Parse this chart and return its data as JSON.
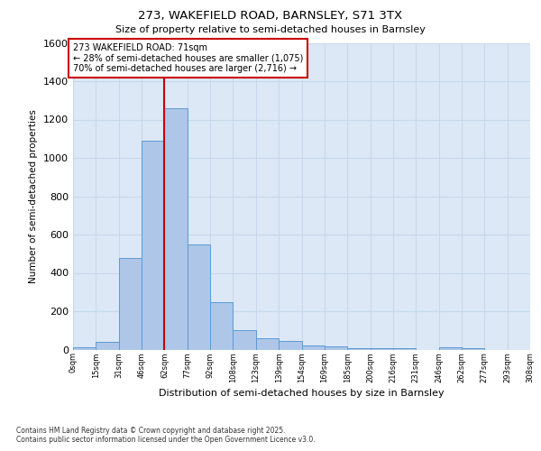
{
  "title_line1": "273, WAKEFIELD ROAD, BARNSLEY, S71 3TX",
  "title_line2": "Size of property relative to semi-detached houses in Barnsley",
  "xlabel": "Distribution of semi-detached houses by size in Barnsley",
  "ylabel": "Number of semi-detached properties",
  "bar_values": [
    10,
    40,
    480,
    1090,
    1260,
    550,
    245,
    100,
    60,
    45,
    22,
    15,
    8,
    8,
    5,
    0,
    10,
    5,
    0,
    0
  ],
  "bin_labels": [
    "0sqm",
    "15sqm",
    "31sqm",
    "46sqm",
    "62sqm",
    "77sqm",
    "92sqm",
    "108sqm",
    "123sqm",
    "139sqm",
    "154sqm",
    "169sqm",
    "185sqm",
    "200sqm",
    "216sqm",
    "231sqm",
    "246sqm",
    "262sqm",
    "277sqm",
    "293sqm",
    "308sqm"
  ],
  "bar_color": "#aec6e8",
  "bar_edge_color": "#5b9bd5",
  "vline_x": 4,
  "vline_color": "#cc0000",
  "annotation_text": "273 WAKEFIELD ROAD: 71sqm\n← 28% of semi-detached houses are smaller (1,075)\n70% of semi-detached houses are larger (2,716) →",
  "annotation_box_color": "white",
  "annotation_box_edge": "#cc0000",
  "ylim_max": 1600,
  "yticks": [
    0,
    200,
    400,
    600,
    800,
    1000,
    1200,
    1400,
    1600
  ],
  "grid_color": "#c8d8ec",
  "bg_color": "#dce8f5",
  "footnote": "Contains HM Land Registry data © Crown copyright and database right 2025.\nContains public sector information licensed under the Open Government Licence v3.0."
}
